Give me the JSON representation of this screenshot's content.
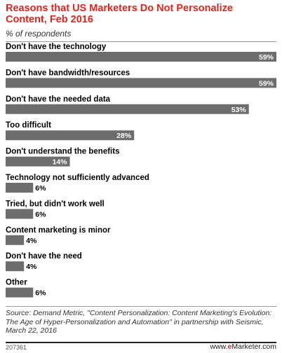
{
  "header": {
    "title": "Reasons that US Marketers Do Not Personalize Content, Feb 2016",
    "subtitle": "% of respondents"
  },
  "chart_data": {
    "type": "bar",
    "orientation": "horizontal",
    "title": "Reasons that US Marketers Do Not Personalize Content, Feb 2016",
    "subtitle": "% of respondents",
    "unit": "%",
    "categories": [
      "Don't have the technology",
      "Don't have bandwidth/resources",
      "Don't have the needed data",
      "Too difficult",
      "Don't understand the benefits",
      "Technology not sufficiently advanced",
      "Tried, but didn't work well",
      "Content marketing is minor",
      "Don't have the need",
      "Other"
    ],
    "values": [
      59,
      59,
      53,
      28,
      14,
      6,
      6,
      4,
      4,
      6
    ],
    "value_labels": [
      "59%",
      "59%",
      "53%",
      "28%",
      "14%",
      "6%",
      "6%",
      "4%",
      "4%",
      "6%"
    ],
    "bar_color": "#6d6d6d",
    "grid": false,
    "legend": "none"
  },
  "footer": {
    "source": "Source: Demand Metric, \"Content Personalization: Content Marketing's Evolution: The Age of Hyper-Personalization and Automation\" in partnership with Seismic, March 22, 2016",
    "chart_id": "207361",
    "logo_prefix": "www.",
    "logo_brand": "e",
    "logo_suffix": "Marketer.com"
  },
  "colors": {
    "title": "#e2231a",
    "bar": "#6d6d6d",
    "label_inside": "#ffffff",
    "label_outside": "#000000"
  }
}
